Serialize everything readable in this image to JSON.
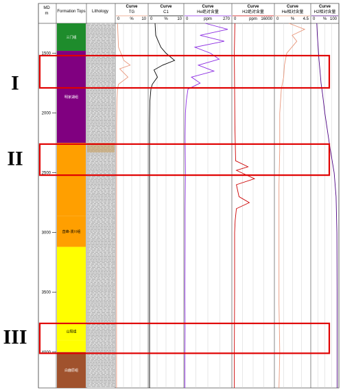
{
  "chart_data": {
    "type": "line",
    "title": "",
    "depth_axis": {
      "title": "MD",
      "unit": "m",
      "min": 1250,
      "max": 4300,
      "ticks": [
        1500,
        2000,
        2500,
        3000,
        3500,
        4000
      ]
    },
    "columns": {
      "depth": "MD\nm",
      "formation": "Formation Tops",
      "lithology": "Lithology"
    },
    "formations": [
      {
        "name": "三门组",
        "top": 1250,
        "base": 1480,
        "color": "#1e8c2c"
      },
      {
        "name": "明家湖组",
        "top": 1480,
        "base": 2250,
        "color": "#800080"
      },
      {
        "name": "",
        "top": 2250,
        "base": 2860,
        "color": "#ff9f00"
      },
      {
        "name": "直峰-漫川组",
        "top": 2860,
        "base": 3120,
        "color": "#ff9f00"
      },
      {
        "name": "",
        "top": 3120,
        "base": 3750,
        "color": "#ffff00"
      },
      {
        "name": "山阳组",
        "top": 3750,
        "base": 3900,
        "color": "#ffff00"
      },
      {
        "name": "",
        "top": 3900,
        "base": 4000,
        "color": "#ffff00"
      },
      {
        "name": "白鹿原组",
        "top": 4000,
        "base": 4300,
        "color": "#a0522d"
      }
    ],
    "tracks": [
      {
        "header": "Curve",
        "name": "TG",
        "left_label": "0",
        "mid_label": "%",
        "right_label": "10",
        "min": 0,
        "max": 10,
        "color": "#e9967a",
        "points": [
          [
            1250,
            0.5
          ],
          [
            1450,
            0.8
          ],
          [
            1560,
            2.5
          ],
          [
            1600,
            4.5
          ],
          [
            1630,
            1.2
          ],
          [
            1700,
            3.8
          ],
          [
            1760,
            0.8
          ],
          [
            1800,
            0.5
          ],
          [
            1900,
            0.3
          ],
          [
            2100,
            0.2
          ],
          [
            2500,
            0.2
          ],
          [
            2900,
            0.2
          ],
          [
            3500,
            0.2
          ],
          [
            4000,
            0.2
          ],
          [
            4300,
            0.2
          ]
        ]
      },
      {
        "header": "Curve",
        "name": "C1",
        "left_label": "0",
        "mid_label": "%",
        "right_label": "10",
        "min": 0,
        "max": 10,
        "color": "#000000",
        "points": [
          [
            1250,
            1.8
          ],
          [
            1350,
            2.0
          ],
          [
            1450,
            3.5
          ],
          [
            1500,
            5.0
          ],
          [
            1560,
            7.5
          ],
          [
            1600,
            4.0
          ],
          [
            1640,
            1.5
          ],
          [
            1700,
            2.5
          ],
          [
            1760,
            1.0
          ],
          [
            1800,
            0.6
          ],
          [
            1900,
            0.3
          ],
          [
            2100,
            0.2
          ],
          [
            2500,
            0.2
          ],
          [
            3000,
            0.2
          ],
          [
            3500,
            0.2
          ],
          [
            4000,
            0.2
          ],
          [
            4300,
            0.2
          ]
        ]
      },
      {
        "header": "Curve",
        "name": "He绝对含量",
        "left_label": "0",
        "mid_label": "ppm",
        "right_label": "270",
        "min": 0,
        "max": 270,
        "color": "#8b2be2",
        "points": [
          [
            1250,
            120
          ],
          [
            1300,
            250
          ],
          [
            1350,
            90
          ],
          [
            1400,
            230
          ],
          [
            1450,
            60
          ],
          [
            1500,
            150
          ],
          [
            1550,
            200
          ],
          [
            1600,
            80
          ],
          [
            1650,
            170
          ],
          [
            1700,
            40
          ],
          [
            1750,
            90
          ],
          [
            1800,
            20
          ],
          [
            1900,
            10
          ],
          [
            2000,
            5
          ],
          [
            2200,
            3
          ],
          [
            2500,
            5
          ],
          [
            2800,
            3
          ],
          [
            3100,
            3
          ],
          [
            3500,
            2
          ],
          [
            3800,
            3
          ],
          [
            4100,
            2
          ],
          [
            4300,
            2
          ]
        ]
      },
      {
        "header": "Curve",
        "name": "H2绝对含量",
        "left_label": "0",
        "mid_label": "ppm",
        "right_label": "16000",
        "min": 0,
        "max": 16000,
        "color": "#cc0000",
        "points": [
          [
            1250,
            900
          ],
          [
            1500,
            700
          ],
          [
            1800,
            800
          ],
          [
            2100,
            900
          ],
          [
            2400,
            1200
          ],
          [
            2450,
            6000
          ],
          [
            2480,
            1500
          ],
          [
            2550,
            8500
          ],
          [
            2600,
            1500
          ],
          [
            2700,
            2500
          ],
          [
            2750,
            6500
          ],
          [
            2800,
            1500
          ],
          [
            2900,
            1000
          ],
          [
            3000,
            800
          ],
          [
            3500,
            800
          ],
          [
            4000,
            700
          ],
          [
            4300,
            700
          ]
        ]
      },
      {
        "header": "Curve",
        "name": "He相对含量",
        "left_label": "0",
        "mid_label": "%",
        "right_label": "4.5",
        "min": 0,
        "max": 4.5,
        "color": "#e9967a",
        "points": [
          [
            1250,
            1.8
          ],
          [
            1300,
            3.8
          ],
          [
            1350,
            2.2
          ],
          [
            1400,
            2.8
          ],
          [
            1500,
            1.5
          ],
          [
            1600,
            1.2
          ],
          [
            1700,
            1.1
          ],
          [
            1800,
            0.8
          ],
          [
            2000,
            0.6
          ],
          [
            2300,
            0.6
          ],
          [
            2600,
            0.5
          ],
          [
            2900,
            0.5
          ],
          [
            3200,
            0.5
          ],
          [
            3600,
            0.5
          ],
          [
            4000,
            0.6
          ],
          [
            4300,
            0.5
          ]
        ]
      },
      {
        "header": "Curve",
        "name": "H2相对含量",
        "left_label": "0",
        "mid_label": "%",
        "right_label": "100",
        "min": 0,
        "max": 100,
        "color": "#4b0082",
        "points": [
          [
            1250,
            20
          ],
          [
            1350,
            22
          ],
          [
            1450,
            25
          ],
          [
            1550,
            28
          ],
          [
            1650,
            32
          ],
          [
            1750,
            36
          ],
          [
            1850,
            42
          ],
          [
            2000,
            50
          ],
          [
            2150,
            60
          ],
          [
            2300,
            70
          ],
          [
            2500,
            85
          ],
          [
            2700,
            92
          ],
          [
            3000,
            95
          ],
          [
            3500,
            96
          ],
          [
            4000,
            96
          ],
          [
            4300,
            96
          ]
        ]
      }
    ],
    "intervals": [
      {
        "label": "I",
        "top": 1520,
        "base": 1790
      },
      {
        "label": "II",
        "top": 2260,
        "base": 2520
      },
      {
        "label": "III",
        "top": 3760,
        "base": 4010
      }
    ]
  }
}
